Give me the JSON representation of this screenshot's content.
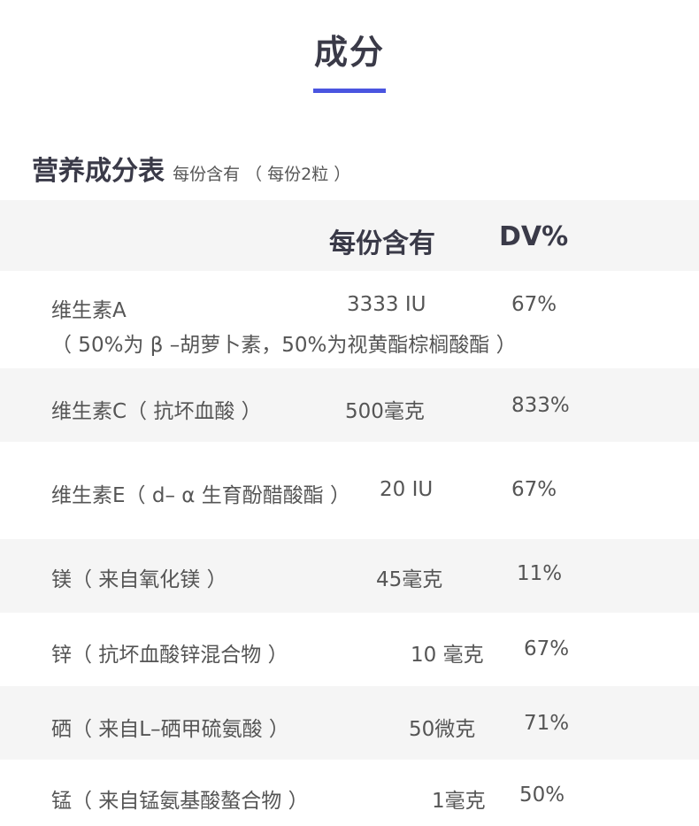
{
  "section": {
    "title": "成分"
  },
  "table": {
    "caption": "营养成分表",
    "caption_sub": "每份含有 （ 每份2粒 ）",
    "header": {
      "amount": "每份含有",
      "dv": "DV%"
    },
    "rows": [
      {
        "name": "维生素A",
        "note": "（ 50%为 β –胡萝卜素，50%为视黄酯棕榈酸酯 ）",
        "amount": "3333 IU",
        "dv": "67%"
      },
      {
        "name": "维生素C（ 抗坏血酸 ）",
        "amount": "500毫克",
        "dv": "833%"
      },
      {
        "name": "维生素E（ d– α 生育酚醋酸酯 ）",
        "amount": "20 IU",
        "dv": "67%"
      },
      {
        "name": "镁（ 来自氧化镁 ）",
        "amount": "45毫克",
        "dv": "11%"
      },
      {
        "name": "锌（ 抗坏血酸锌混合物 ）",
        "amount": "10 毫克",
        "dv": "67%"
      },
      {
        "name": "硒（ 来自L–硒甲硫氨酸 ）",
        "amount": "50微克",
        "dv": "71%"
      },
      {
        "name": "锰（ 来自锰氨基酸螯合物 ）",
        "amount": "1毫克",
        "dv": "50%"
      }
    ]
  },
  "colors": {
    "accent": "#4a55e0",
    "row_shade": "#f5f5f5",
    "heading_text": "#3a3a48",
    "body_text": "#555555"
  }
}
